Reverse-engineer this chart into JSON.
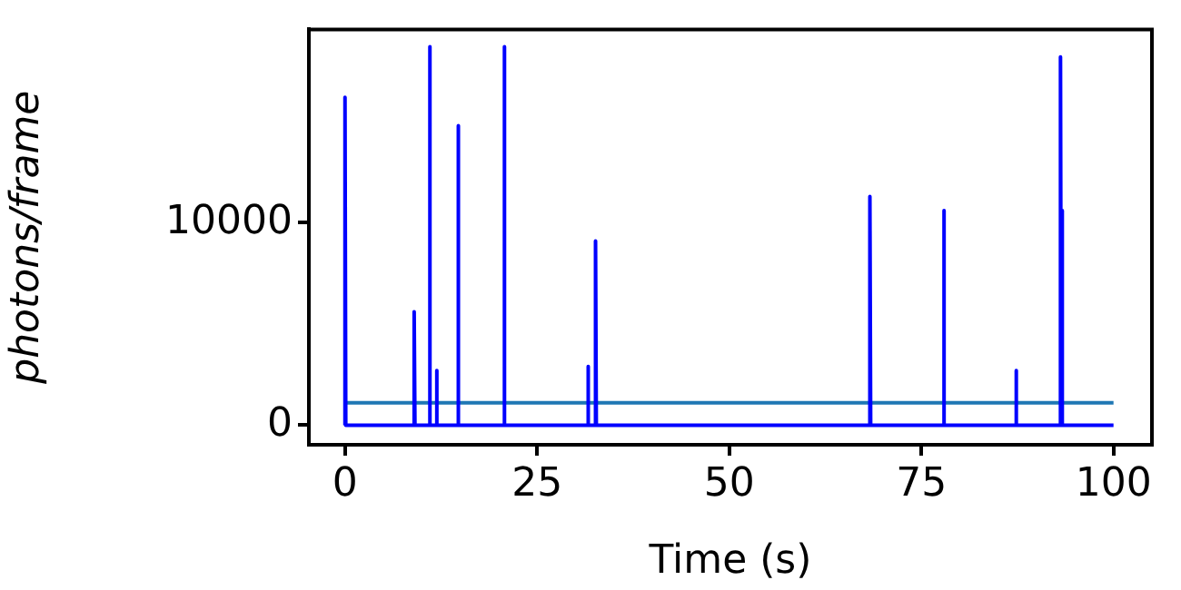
{
  "chart_data": {
    "type": "line",
    "xlabel": "Time (s)",
    "ylabel": "photons/frame",
    "series": [
      {
        "color": "#0000ff",
        "x": [
          0,
          0,
          0.1,
          9,
          9,
          9.1,
          11,
          11,
          11.1,
          11.9,
          11.9,
          12,
          14.7,
          14.7,
          14.8,
          20.7,
          20.7,
          20.8,
          31.6,
          31.6,
          31.7,
          32.6,
          32.6,
          32.7,
          68.3,
          68.3,
          68.4,
          77.9,
          77.9,
          78,
          87.3,
          87.3,
          87.4,
          93.1,
          93.1,
          93.2,
          93.3,
          93.3,
          93.4,
          100
        ],
        "values": [
          0,
          16200,
          0,
          0,
          5600,
          0,
          0,
          18700,
          0,
          0,
          2700,
          0,
          0,
          14800,
          0,
          0,
          18700,
          0,
          0,
          2900,
          0,
          0,
          9100,
          0,
          0,
          11300,
          0,
          0,
          10600,
          0,
          0,
          2700,
          0,
          0,
          18200,
          0,
          0,
          10600,
          0,
          0
        ]
      },
      {
        "color": "#1f77b4",
        "x": [
          0,
          100
        ],
        "values": [
          1100,
          1100
        ]
      }
    ],
    "xlim": [
      -4.7,
      105
    ],
    "ylim": [
      -970,
      19560
    ],
    "xticks": [
      0,
      25,
      50,
      75,
      100
    ],
    "yticks": [
      0,
      10000
    ],
    "grid": false,
    "legend": false,
    "marker": "none",
    "line_style": "solid"
  }
}
